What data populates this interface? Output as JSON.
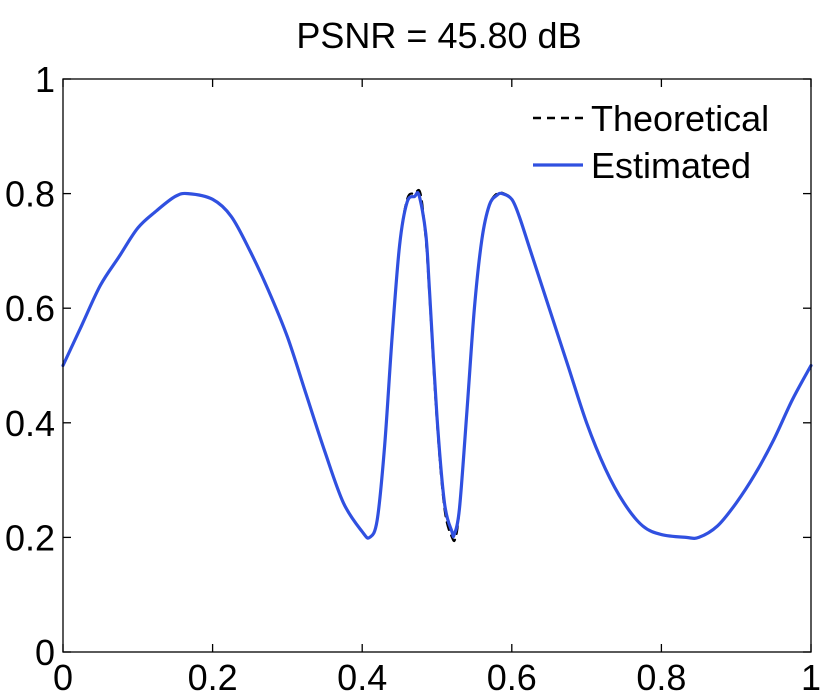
{
  "chart_data": {
    "type": "line",
    "title": "PSNR = 45.80 dB",
    "xlabel": "",
    "ylabel": "",
    "xlim": [
      0,
      1
    ],
    "ylim": [
      0,
      1
    ],
    "x_ticks": [
      "0",
      "0.2",
      "0.4",
      "0.6",
      "0.8",
      "1"
    ],
    "y_ticks": [
      "0",
      "0.2",
      "0.4",
      "0.6",
      "0.8",
      "1"
    ],
    "grid": false,
    "legend_position": "top-right",
    "series": [
      {
        "name": "Theoretical",
        "color": "#000000",
        "style": "dashed",
        "x": [
          0,
          0.025,
          0.05,
          0.075,
          0.1,
          0.125,
          0.15,
          0.167,
          0.2,
          0.225,
          0.25,
          0.275,
          0.3,
          0.325,
          0.35,
          0.375,
          0.4,
          0.41,
          0.42,
          0.43,
          0.44,
          0.45,
          0.46,
          0.47,
          0.478,
          0.485,
          0.49,
          0.5,
          0.51,
          0.52,
          0.525,
          0.53,
          0.54,
          0.55,
          0.56,
          0.57,
          0.58,
          0.59,
          0.6,
          0.61,
          0.625,
          0.65,
          0.675,
          0.7,
          0.725,
          0.75,
          0.775,
          0.8,
          0.833,
          0.85,
          0.875,
          0.9,
          0.925,
          0.95,
          0.975,
          1
        ],
        "y": [
          0.5,
          0.57,
          0.64,
          0.69,
          0.74,
          0.77,
          0.795,
          0.8,
          0.79,
          0.76,
          0.7,
          0.63,
          0.55,
          0.45,
          0.35,
          0.26,
          0.21,
          0.2,
          0.23,
          0.36,
          0.55,
          0.71,
          0.79,
          0.8,
          0.8,
          0.72,
          0.62,
          0.4,
          0.25,
          0.2,
          0.2,
          0.25,
          0.42,
          0.6,
          0.72,
          0.78,
          0.8,
          0.8,
          0.79,
          0.76,
          0.7,
          0.6,
          0.5,
          0.4,
          0.32,
          0.26,
          0.22,
          0.205,
          0.2,
          0.2,
          0.22,
          0.26,
          0.31,
          0.37,
          0.44,
          0.5
        ]
      },
      {
        "name": "Estimated",
        "color": "#3050e0",
        "style": "solid",
        "x": [
          0,
          0.025,
          0.05,
          0.075,
          0.1,
          0.125,
          0.15,
          0.167,
          0.2,
          0.225,
          0.25,
          0.275,
          0.3,
          0.325,
          0.35,
          0.375,
          0.4,
          0.41,
          0.42,
          0.43,
          0.44,
          0.45,
          0.46,
          0.47,
          0.476,
          0.485,
          0.49,
          0.5,
          0.51,
          0.52,
          0.523,
          0.53,
          0.54,
          0.55,
          0.56,
          0.57,
          0.58,
          0.587,
          0.6,
          0.61,
          0.625,
          0.65,
          0.675,
          0.7,
          0.725,
          0.75,
          0.775,
          0.8,
          0.833,
          0.85,
          0.875,
          0.9,
          0.925,
          0.95,
          0.975,
          1
        ],
        "y": [
          0.5,
          0.57,
          0.64,
          0.69,
          0.74,
          0.77,
          0.795,
          0.8,
          0.79,
          0.76,
          0.7,
          0.63,
          0.55,
          0.45,
          0.35,
          0.26,
          0.21,
          0.2,
          0.23,
          0.36,
          0.55,
          0.71,
          0.785,
          0.795,
          0.797,
          0.73,
          0.63,
          0.41,
          0.26,
          0.21,
          0.205,
          0.25,
          0.42,
          0.6,
          0.72,
          0.78,
          0.797,
          0.8,
          0.79,
          0.76,
          0.7,
          0.6,
          0.5,
          0.4,
          0.32,
          0.26,
          0.22,
          0.205,
          0.2,
          0.2,
          0.22,
          0.26,
          0.31,
          0.37,
          0.44,
          0.5
        ]
      }
    ]
  }
}
